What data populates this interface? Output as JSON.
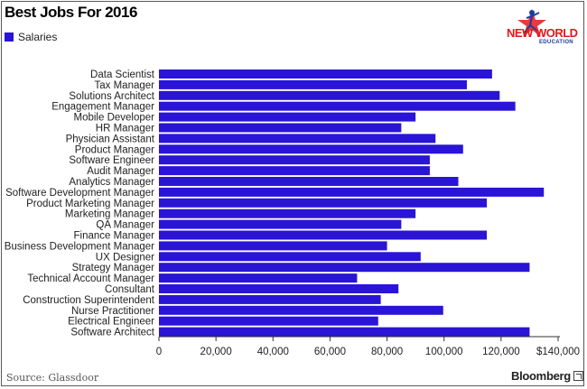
{
  "header": {
    "title": "Best Jobs For 2016"
  },
  "logo": {
    "line1": "NEW WORLD",
    "line2": "EDUCATION"
  },
  "footer": {
    "source": "Source: Glassdoor",
    "brand": "Bloomberg"
  },
  "colors": {
    "bar": "#2a14d6",
    "axis": "#333333",
    "text": "#222222"
  },
  "chart_data": {
    "type": "bar",
    "orientation": "horizontal",
    "title": "Best Jobs For 2016",
    "legend": {
      "position": "top-left",
      "entries": [
        "Salaries"
      ]
    },
    "categories": [
      "Data Scientist",
      "Tax Manager",
      "Solutions Architect",
      "Engagement Manager",
      "Mobile Developer",
      "HR Manager",
      "Physician Assistant",
      "Product Manager",
      "Software Engineer",
      "Audit Manager",
      "Analytics Manager",
      "Software Development Manager",
      "Product Marketing Manager",
      "Marketing Manager",
      "QA Manager",
      "Finance Manager",
      "Business Development Manager",
      "UX Designer",
      "Strategy Manager",
      "Technical Account Manager",
      "Consultant",
      "Construction Superintendent",
      "Nurse Practitioner",
      "Electrical Engineer",
      "Software Architect"
    ],
    "series": [
      {
        "name": "Salaries",
        "values": [
          116840,
          108000,
          119500,
          125000,
          90000,
          85000,
          97000,
          106680,
          95000,
          95000,
          105000,
          135000,
          115000,
          90000,
          85000,
          115000,
          80000,
          91800,
          130000,
          69500,
          84000,
          77800,
          99700,
          76900,
          130000
        ]
      }
    ],
    "xlim": [
      0,
      140000
    ],
    "xticks": [
      "0",
      "20,000",
      "40,000",
      "60,000",
      "80,000",
      "100,000",
      "120,000",
      "$140,000"
    ],
    "grid": false
  }
}
